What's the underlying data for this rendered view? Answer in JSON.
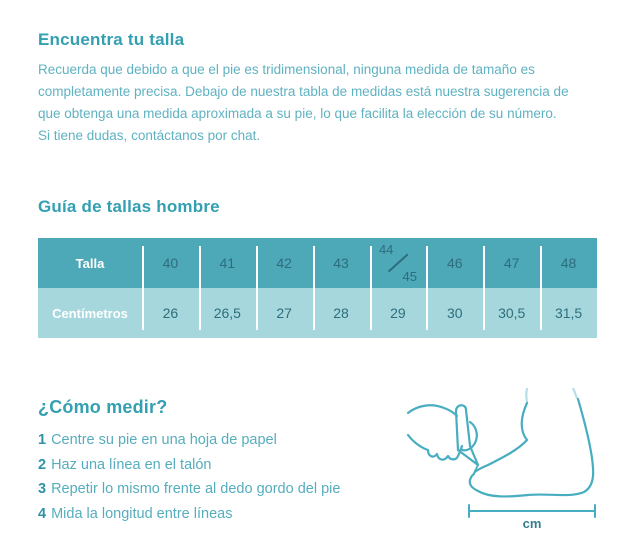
{
  "page": {
    "title": "Encuentra tu talla",
    "intro": "Recuerda que debido a que el pie es tridimensional, ninguna medida de tamaño es\ncompletamente precisa. Debajo de nuestra tabla de medidas está nuestra sugerencia de\nque obtenga una medida aproximada a su pie, lo que facilita la elección de su número.\nSi tiene dudas, contáctanos por chat."
  },
  "size_guide": {
    "heading": "Guía de tallas hombre",
    "rows": [
      {
        "label": "Talla",
        "values": [
          "40",
          "41",
          "42",
          "43",
          "44/45",
          "46",
          "47",
          "48"
        ]
      },
      {
        "label": "Centímetros",
        "values": [
          "26",
          "26,5",
          "27",
          "28",
          "29",
          "30",
          "30,5",
          "31,5"
        ]
      }
    ]
  },
  "how_to_measure": {
    "heading": "¿Cómo medir?",
    "steps": [
      {
        "number": "1",
        "text": "Centre su pie en una hoja de papel"
      },
      {
        "number": "2",
        "text": "Haz una línea en el talón"
      },
      {
        "number": "3",
        "text": "Repetir lo mismo frente al dedo gordo del pie"
      },
      {
        "number": "4",
        "text": "Mida la longitud entre líneas"
      }
    ],
    "illustration_unit_label": "cm"
  },
  "colors": {
    "heading_text": "#33a0b2",
    "body_text": "#5fb2c1",
    "table_header_bg": "#4da8b8",
    "table_row_bg": "#a6d7dd",
    "table_value_text": "#2d6e7d",
    "table_label_text": "#ffffff",
    "illustration_stroke": "#47adc0"
  }
}
